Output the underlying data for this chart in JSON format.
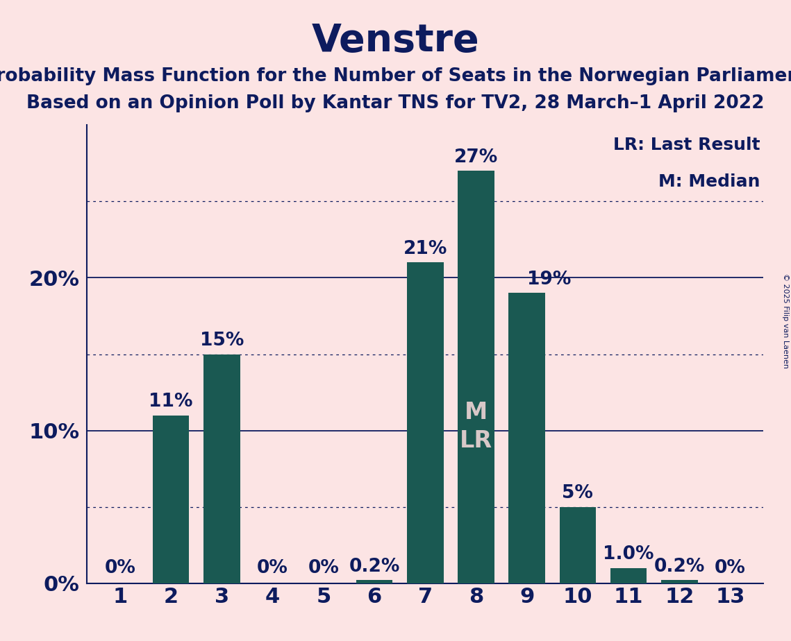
{
  "title": "Venstre",
  "subtitle1": "Probability Mass Function for the Number of Seats in the Norwegian Parliament",
  "subtitle2": "Based on an Opinion Poll by Kantar TNS for TV2, 28 March–1 April 2022",
  "copyright": "© 2025 Filip van Laenen",
  "categories": [
    1,
    2,
    3,
    4,
    5,
    6,
    7,
    8,
    9,
    10,
    11,
    12,
    13
  ],
  "values": [
    0.0,
    11.0,
    15.0,
    0.0,
    0.0,
    0.2,
    21.0,
    27.0,
    19.0,
    5.0,
    1.0,
    0.2,
    0.0
  ],
  "bar_color": "#1a5952",
  "background_color": "#fce4e4",
  "title_color": "#0d1b5e",
  "median_bar_index": 7,
  "value_labels": [
    "0%",
    "11%",
    "15%",
    "0%",
    "0%",
    "0.2%",
    "21%",
    "27%",
    "19%",
    "5%",
    "1.0%",
    "0.2%",
    "0%"
  ],
  "yticks": [
    0,
    10,
    20
  ],
  "ytick_labels": [
    "0%",
    "10%",
    "20%"
  ],
  "dotted_lines": [
    5,
    15,
    25
  ],
  "solid_lines": [
    0,
    10,
    20
  ],
  "ylim": [
    0,
    30
  ],
  "legend_lr": "LR: Last Result",
  "legend_m": "M: Median",
  "title_fontsize": 40,
  "subtitle_fontsize": 19,
  "bar_label_fontsize": 19,
  "axis_tick_fontsize": 22,
  "legend_fontsize": 18,
  "copyright_fontsize": 8,
  "ml_fontsize": 24,
  "ml_color": "#d8c8c8"
}
